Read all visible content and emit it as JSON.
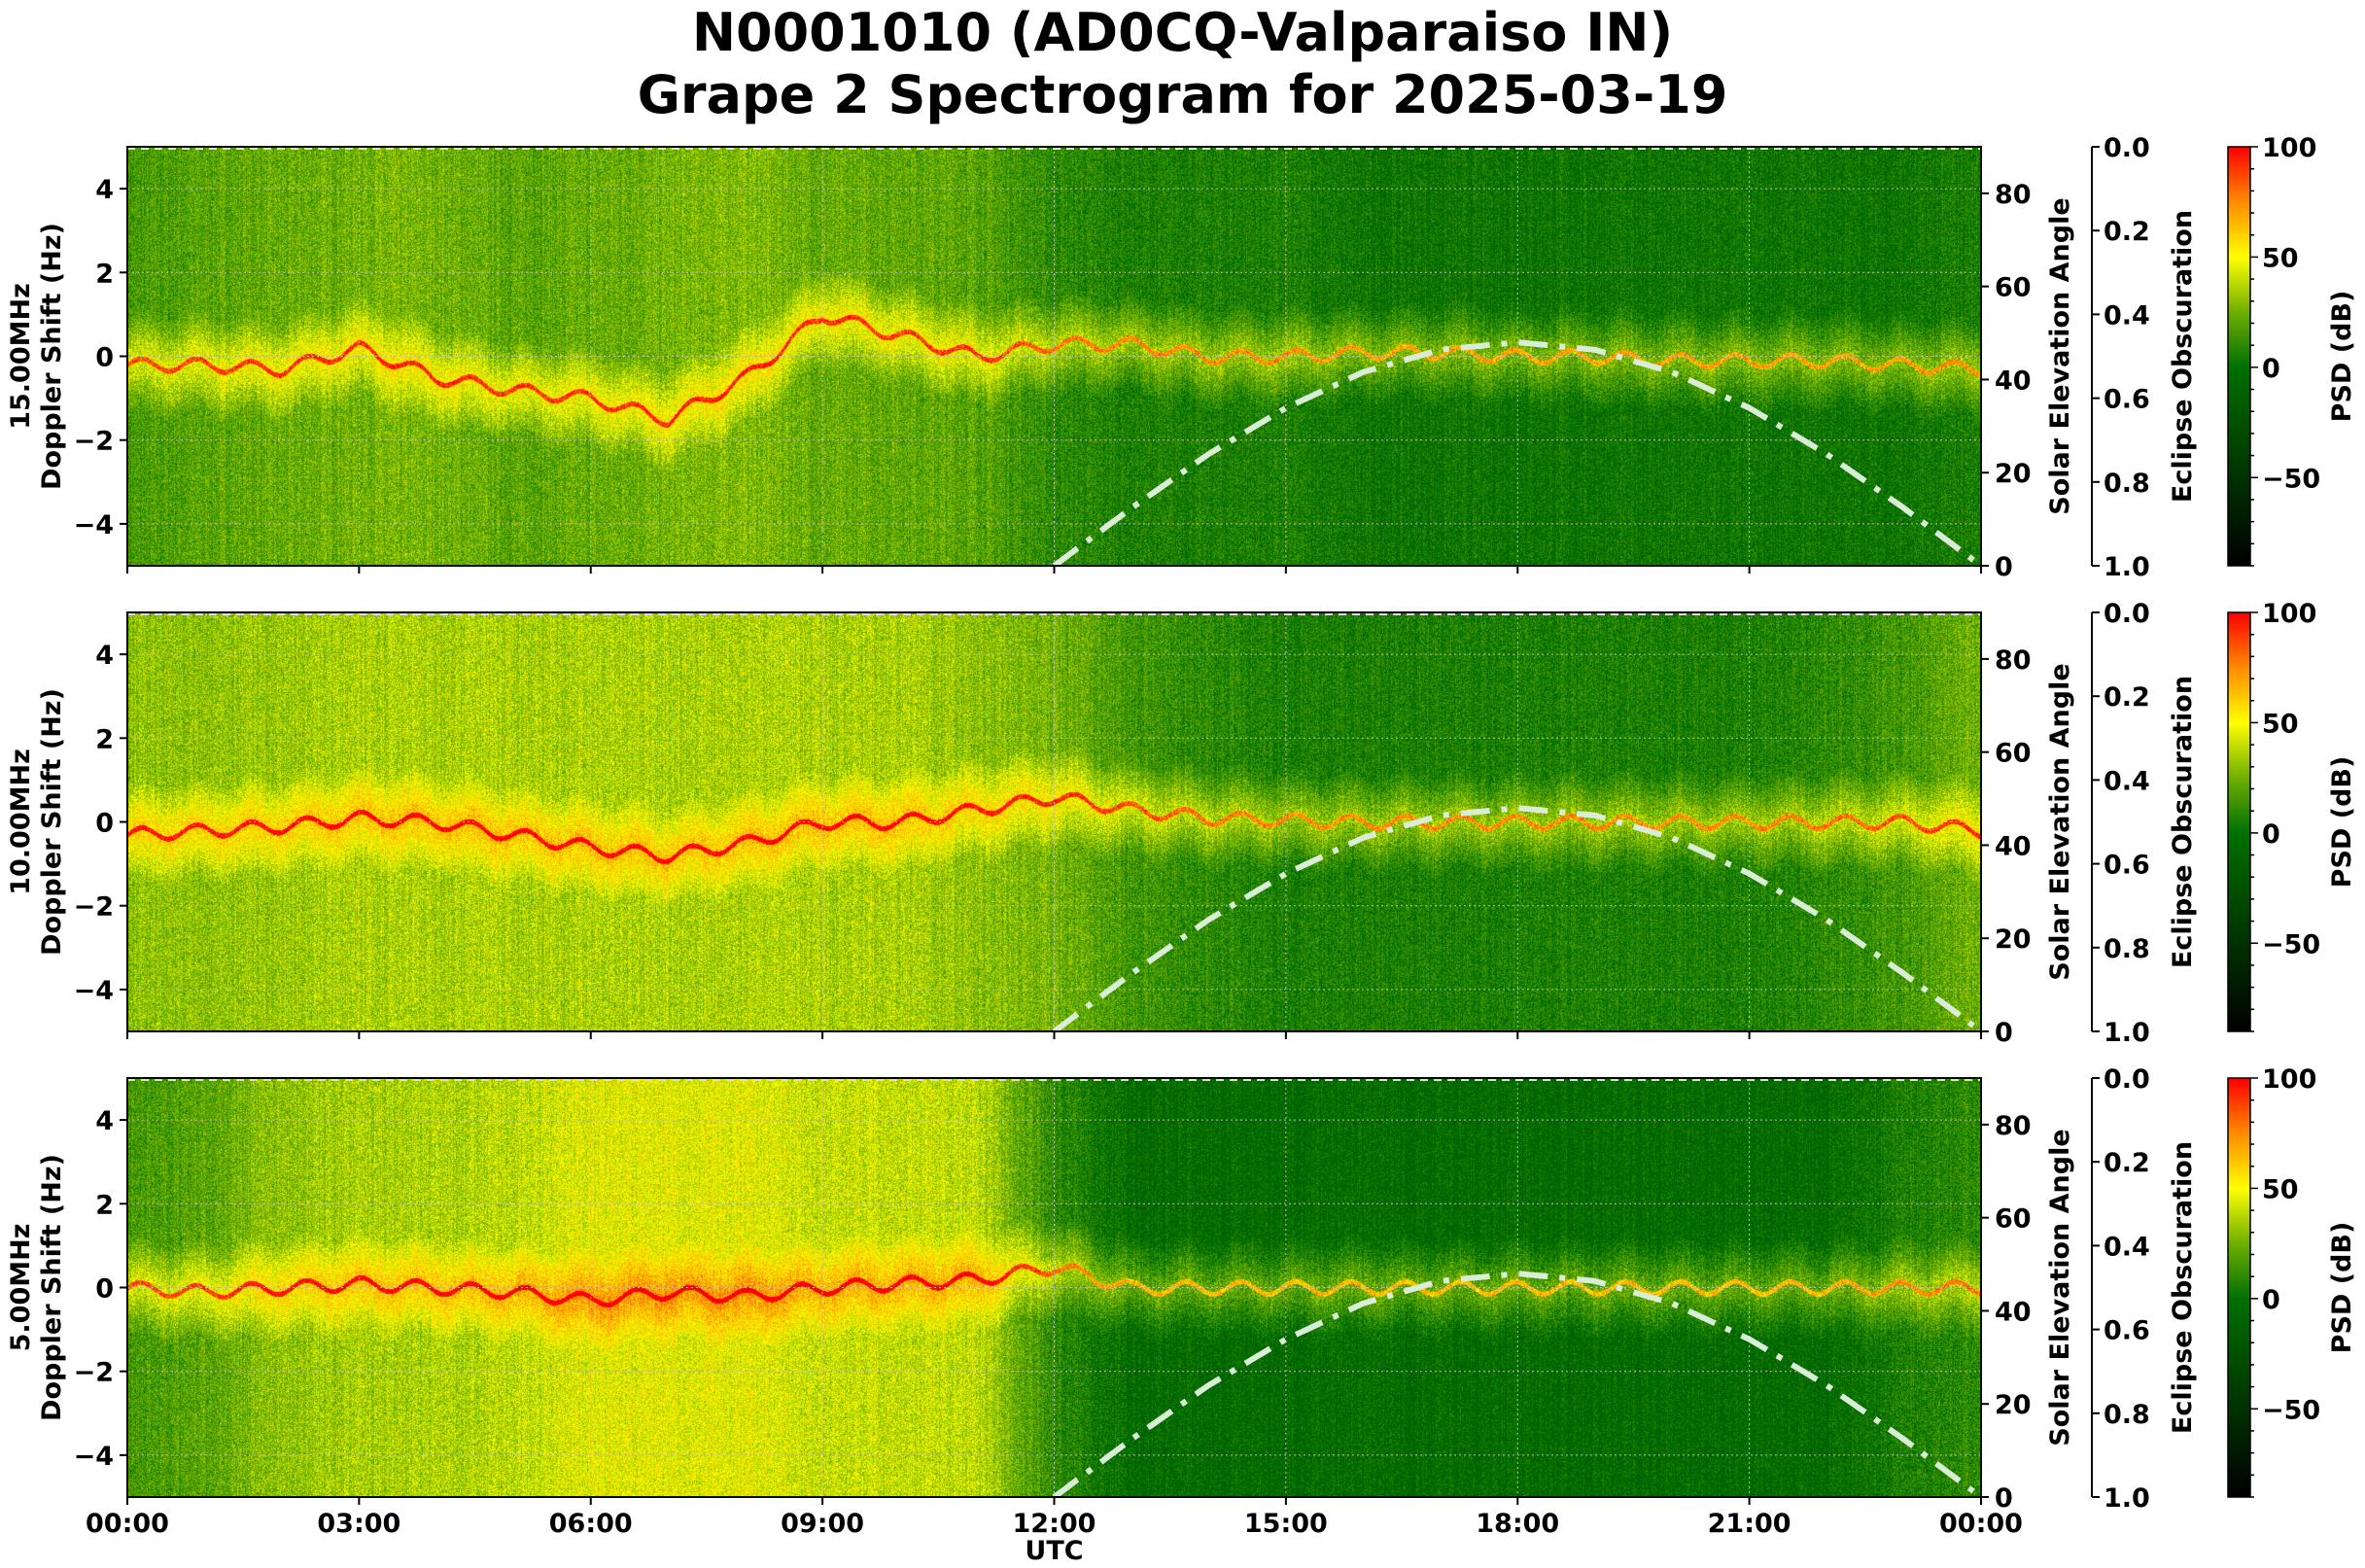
{
  "title_line1": "N0001010 (AD0CQ-Valparaiso IN)",
  "title_line2": "Grape 2 Spectrogram for 2025-03-19",
  "chart_data": {
    "type": "heatmap",
    "xlabel": "UTC",
    "x_ticks": [
      "00:00",
      "03:00",
      "06:00",
      "09:00",
      "12:00",
      "15:00",
      "18:00",
      "21:00",
      "00:00"
    ],
    "x_range_hours": [
      0,
      24
    ],
    "ylabel": "Doppler Shift (Hz)",
    "ylim": [
      -5,
      5
    ],
    "y_ticks": [
      -4,
      -2,
      0,
      2,
      4
    ],
    "right_axis_label": "Solar Elevation Angle",
    "right_ylim": [
      0,
      90
    ],
    "right_ticks": [
      0,
      20,
      40,
      60,
      80
    ],
    "eclipse_axis_label": "Eclipse Obscuration",
    "eclipse_ylim": [
      1.0,
      0.0
    ],
    "eclipse_ticks": [
      "0.0",
      "0.2",
      "0.4",
      "0.6",
      "0.8",
      "1.0"
    ],
    "colorbar_label": "PSD (dB)",
    "colorbar_range": [
      -90,
      100
    ],
    "colorbar_ticks": [
      100,
      50,
      0,
      -50
    ],
    "grid": true,
    "solar_elevation": {
      "hours": [
        12,
        13,
        14,
        15,
        16,
        17,
        18,
        19,
        20,
        21,
        22,
        23,
        24
      ],
      "degrees": [
        0,
        12.4,
        24,
        33.9,
        41.6,
        46.4,
        48,
        46.4,
        41.6,
        33.9,
        24,
        12.4,
        0
      ]
    },
    "panels": [
      {
        "label": "15.00MHz",
        "mean_psd_hourly_db": [
          15,
          20,
          22,
          25,
          25,
          20,
          22,
          25,
          28,
          22,
          22,
          20,
          10,
          5,
          5,
          5,
          0,
          0,
          0,
          0,
          0,
          0,
          0,
          0,
          5
        ],
        "carrier_doppler_hourly_hz": [
          -0.2,
          -0.2,
          -0.3,
          0.2,
          -0.5,
          -0.8,
          -1,
          -1.5,
          -0.5,
          1,
          0.5,
          0,
          0.3,
          0.3,
          0,
          0,
          0.1,
          0.1,
          0,
          0,
          -0.1,
          -0.1,
          -0.1,
          -0.2,
          -0.3
        ]
      },
      {
        "label": "10.00MHz",
        "mean_psd_hourly_db": [
          30,
          30,
          32,
          35,
          35,
          35,
          35,
          35,
          35,
          35,
          35,
          30,
          25,
          15,
          10,
          5,
          5,
          5,
          5,
          5,
          5,
          5,
          10,
          15,
          25
        ],
        "carrier_doppler_hourly_hz": [
          -0.3,
          -0.2,
          -0.1,
          0.1,
          0,
          -0.3,
          -0.6,
          -0.8,
          -0.5,
          0,
          0,
          0.3,
          0.6,
          0.3,
          0.1,
          0.05,
          0,
          0,
          0,
          0,
          0,
          0,
          0,
          0,
          -0.2
        ]
      },
      {
        "label": "5.00MHz",
        "mean_psd_hourly_db": [
          15,
          20,
          30,
          35,
          35,
          38,
          45,
          45,
          45,
          40,
          40,
          38,
          10,
          -5,
          -5,
          -5,
          -5,
          -5,
          -5,
          -5,
          -5,
          -5,
          -5,
          5,
          10
        ],
        "carrier_doppler_hourly_hz": [
          0,
          -0.1,
          0,
          0.1,
          0,
          -0.1,
          -0.3,
          -0.1,
          -0.2,
          0,
          0.1,
          0.2,
          0.5,
          0,
          0,
          0,
          0,
          0,
          0,
          0,
          0,
          0,
          0,
          0,
          0
        ]
      }
    ]
  }
}
